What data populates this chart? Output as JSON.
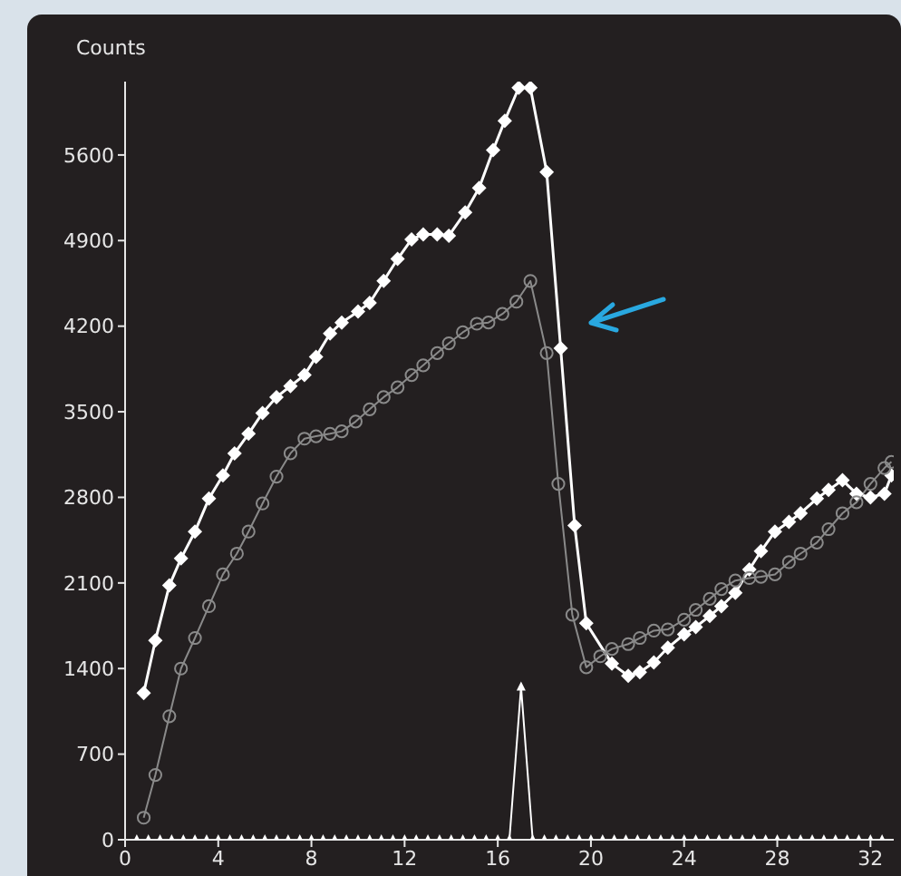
{
  "chart_data": {
    "type": "line",
    "ylabel": "Counts",
    "xlim": [
      0,
      33
    ],
    "xticks": [
      0,
      4,
      8,
      12,
      16,
      20,
      24,
      28,
      32
    ],
    "ylim": [
      0,
      6200
    ],
    "yticks": [
      0,
      700,
      1400,
      2100,
      2800,
      3500,
      4200,
      4900,
      5600
    ],
    "series": [
      {
        "color": "#ffffff",
        "marker": "diamond",
        "x": [
          0.8,
          1.3,
          1.9,
          2.4,
          3.0,
          3.6,
          4.2,
          4.7,
          5.3,
          5.9,
          6.5,
          7.1,
          7.7,
          8.2,
          8.8,
          9.3,
          10.0,
          10.5,
          11.1,
          11.7,
          12.3,
          12.8,
          13.4,
          13.9,
          14.6,
          15.2,
          15.8,
          16.3,
          16.9,
          17.4,
          18.1,
          18.7,
          19.3,
          19.8,
          20.9,
          21.6,
          22.1,
          22.7,
          23.3,
          24.0,
          24.5,
          25.1,
          25.6,
          26.2,
          26.8,
          27.3,
          27.9,
          28.5,
          29.0,
          29.7,
          30.2,
          30.8,
          31.4,
          32.0,
          32.6,
          32.9
        ],
        "values": [
          1200,
          1630,
          2080,
          2300,
          2520,
          2790,
          2980,
          3160,
          3320,
          3490,
          3620,
          3710,
          3800,
          3950,
          4140,
          4230,
          4320,
          4390,
          4570,
          4750,
          4910,
          4950,
          4950,
          4940,
          5130,
          5330,
          5640,
          5880,
          6150,
          6150,
          5460,
          4020,
          2570,
          1770,
          1440,
          1340,
          1370,
          1450,
          1570,
          1680,
          1740,
          1830,
          1910,
          2020,
          2210,
          2360,
          2520,
          2600,
          2670,
          2790,
          2860,
          2940,
          2830,
          2800,
          2830,
          2980
        ]
      },
      {
        "color": "#8a8a8a",
        "marker": "circle",
        "x": [
          0.8,
          1.3,
          1.9,
          2.4,
          3.0,
          3.6,
          4.2,
          4.8,
          5.3,
          5.9,
          6.5,
          7.1,
          7.7,
          8.2,
          8.8,
          9.3,
          9.9,
          10.5,
          11.1,
          11.7,
          12.3,
          12.8,
          13.4,
          13.9,
          14.5,
          15.1,
          15.6,
          16.2,
          16.8,
          17.4,
          18.1,
          18.6,
          19.2,
          19.8,
          20.4,
          20.9,
          21.6,
          22.1,
          22.7,
          23.3,
          24.0,
          24.5,
          25.1,
          25.6,
          26.2,
          26.8,
          27.3,
          27.9,
          28.5,
          29.0,
          29.7,
          30.2,
          30.8,
          31.4,
          32.0,
          32.6,
          32.9
        ],
        "values": [
          180,
          530,
          1010,
          1400,
          1650,
          1910,
          2170,
          2340,
          2520,
          2750,
          2970,
          3160,
          3280,
          3300,
          3320,
          3340,
          3420,
          3520,
          3620,
          3700,
          3800,
          3880,
          3980,
          4060,
          4150,
          4220,
          4230,
          4300,
          4400,
          4570,
          3980,
          2910,
          1840,
          1410,
          1500,
          1560,
          1600,
          1650,
          1710,
          1720,
          1800,
          1880,
          1970,
          2050,
          2120,
          2140,
          2150,
          2170,
          2270,
          2340,
          2430,
          2540,
          2670,
          2760,
          2910,
          3040,
          3090
        ]
      },
      {
        "color": "#ffffff",
        "marker": "triangle",
        "x": [
          0.5,
          1,
          1.5,
          2,
          2.5,
          3,
          3.5,
          4,
          4.5,
          5,
          5.5,
          6,
          6.5,
          7,
          7.5,
          8,
          8.5,
          9,
          9.5,
          10,
          10.5,
          11,
          11.5,
          12,
          12.5,
          13,
          13.5,
          14,
          14.5,
          15,
          15.5,
          16,
          16.5,
          17,
          17.5,
          18,
          18.5,
          19,
          19.5,
          20,
          20.5,
          21,
          21.5,
          22,
          22.5,
          23,
          23.5,
          24,
          24.5,
          25,
          25.5,
          26,
          26.5,
          27,
          27.5,
          28,
          28.5,
          29,
          29.5,
          30,
          30.5,
          31,
          31.5,
          32,
          32.5
        ],
        "values": [
          0,
          0,
          0,
          0,
          0,
          0,
          0,
          0,
          0,
          0,
          0,
          0,
          0,
          0,
          0,
          0,
          0,
          0,
          0,
          0,
          0,
          0,
          0,
          0,
          0,
          0,
          0,
          0,
          0,
          0,
          0,
          0,
          0,
          1250,
          0,
          0,
          0,
          0,
          0,
          0,
          0,
          0,
          0,
          0,
          0,
          0,
          0,
          0,
          0,
          0,
          0,
          0,
          0,
          0,
          0,
          0,
          0,
          0,
          0,
          0,
          0,
          0,
          0,
          0,
          0
        ]
      }
    ]
  }
}
